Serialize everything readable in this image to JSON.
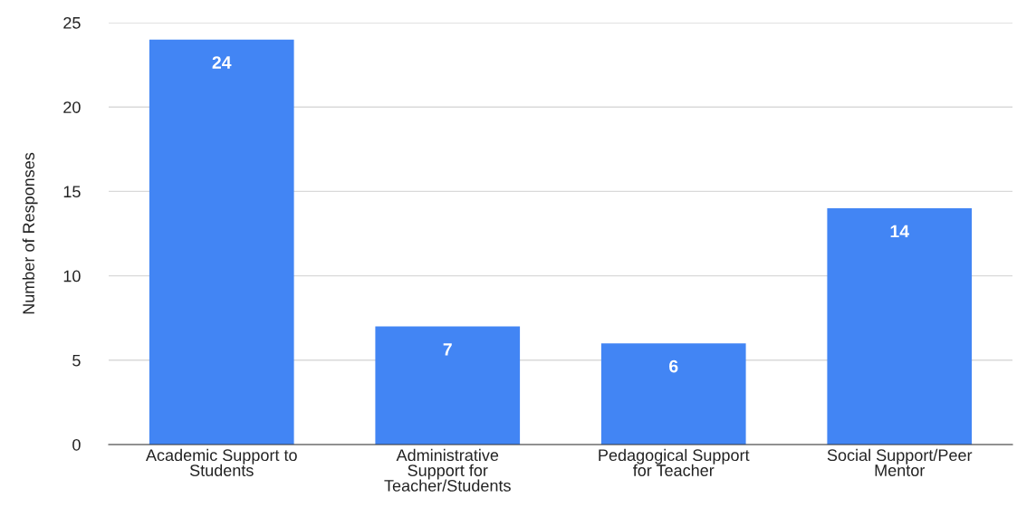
{
  "chart_data": {
    "type": "bar",
    "ylabel": "Number of Responses",
    "categories": [
      "Academic Support to\nStudents",
      "Administrative\nSupport for\nTeacher/Students",
      "Pedagogical Support\nfor Teacher",
      "Social Support/Peer\nMentor"
    ],
    "values": [
      24,
      7,
      6,
      14
    ],
    "color": "#4285f4",
    "ylim": [
      0,
      25
    ],
    "yticks": [
      0,
      5,
      10,
      15,
      20,
      25
    ],
    "grid": "y",
    "data_labels": true
  }
}
